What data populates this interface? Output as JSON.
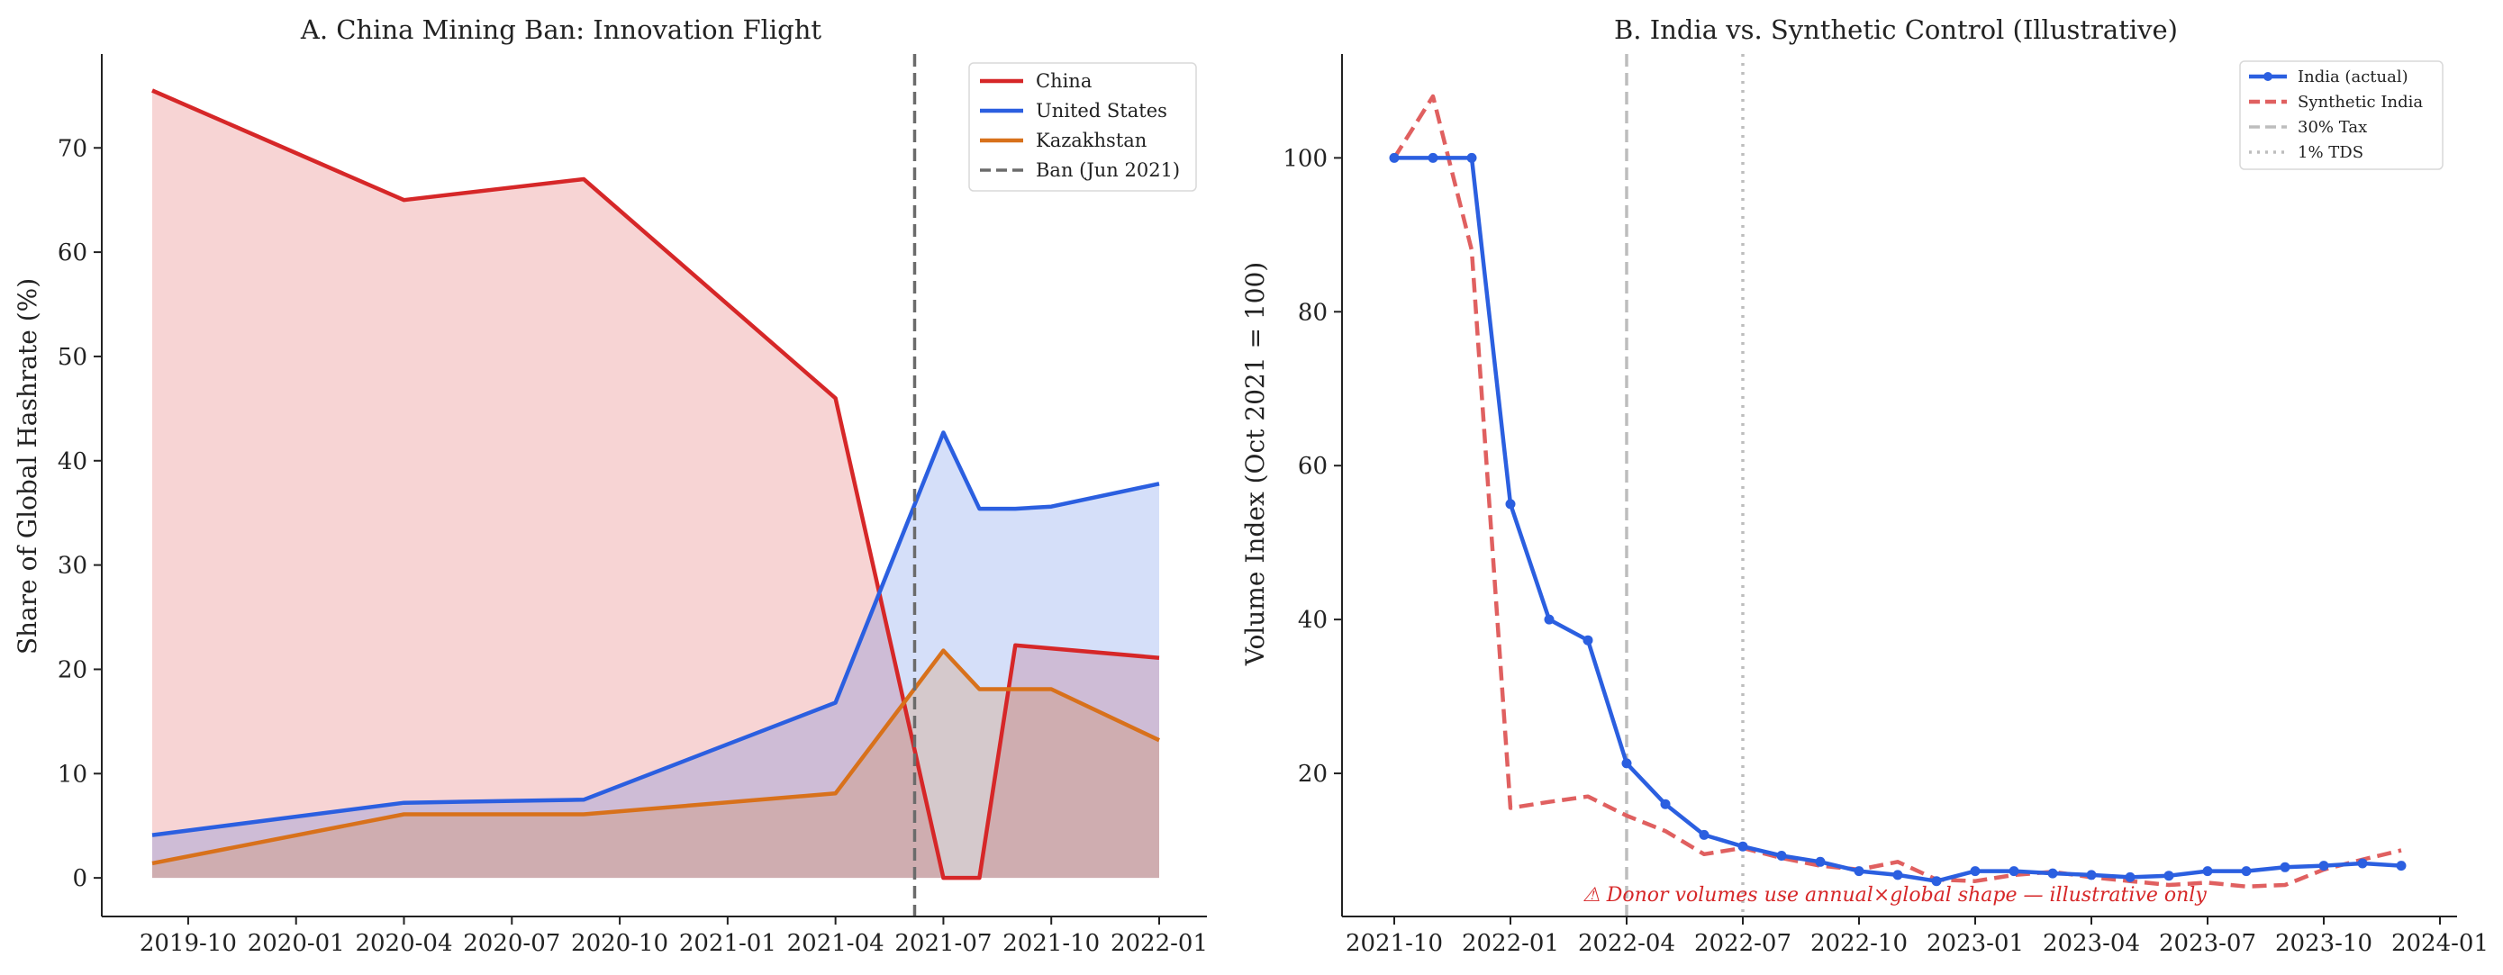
{
  "chart_data": [
    {
      "type": "area",
      "title": "A. China Mining Ban: Innovation Flight",
      "xlabel": "",
      "ylabel": "Share of Global Hashrate (%)",
      "x_tick_labels": [
        "2019-10",
        "2020-01",
        "2020-04",
        "2020-07",
        "2020-10",
        "2021-01",
        "2021-04",
        "2021-07",
        "2021-10",
        "2022-01"
      ],
      "y_ticks": [
        0,
        10,
        20,
        30,
        40,
        50,
        60,
        70
      ],
      "ylim": [
        -3.7,
        79
      ],
      "x": [
        "2019-09",
        "2020-04",
        "2020-09",
        "2021-04",
        "2021-07",
        "2021-08",
        "2021-09",
        "2021-10",
        "2022-01"
      ],
      "series": [
        {
          "name": "China",
          "color": "#d62728",
          "values": [
            75.5,
            65.0,
            67.0,
            46.0,
            0.0,
            0.0,
            22.3,
            22.0,
            21.1
          ]
        },
        {
          "name": "United States",
          "color": "#2b5fe0",
          "values": [
            4.1,
            7.2,
            7.5,
            16.8,
            42.7,
            35.4,
            35.4,
            35.6,
            37.8
          ]
        },
        {
          "name": "Kazakhstan",
          "color": "#d8711b",
          "values": [
            1.4,
            6.1,
            6.1,
            8.1,
            21.8,
            18.1,
            18.1,
            18.1,
            13.2
          ]
        }
      ],
      "vline": {
        "label": "Ban (Jun 2021)",
        "x": "2021-06"
      },
      "legend_position": "top-right"
    },
    {
      "type": "line",
      "title": "B. India vs. Synthetic Control (Illustrative)",
      "xlabel": "",
      "ylabel": "Volume Index (Oct 2021 = 100)",
      "x_tick_labels": [
        "2021-10",
        "2022-01",
        "2022-04",
        "2022-07",
        "2022-10",
        "2023-01",
        "2023-04",
        "2023-07",
        "2023-10",
        "2024-01"
      ],
      "y_ticks": [
        20,
        40,
        60,
        80,
        100
      ],
      "ylim": [
        1.4,
        113.5
      ],
      "x": [
        "2021-10",
        "2021-11",
        "2021-12",
        "2022-01",
        "2022-02",
        "2022-03",
        "2022-04",
        "2022-05",
        "2022-06",
        "2022-07",
        "2022-08",
        "2022-09",
        "2022-10",
        "2022-11",
        "2022-12",
        "2023-01",
        "2023-02",
        "2023-03",
        "2023-04",
        "2023-05",
        "2023-06",
        "2023-07",
        "2023-08",
        "2023-09",
        "2023-10",
        "2023-11",
        "2023-12"
      ],
      "series": [
        {
          "name": "India (actual)",
          "color": "#2b5fe0",
          "values": [
            100,
            100,
            100,
            55,
            40,
            37.3,
            21.3,
            16,
            12,
            10.5,
            9.3,
            8.5,
            7.3,
            6.8,
            6,
            7.3,
            7.3,
            7,
            6.8,
            6.5,
            6.7,
            7.3,
            7.3,
            7.8,
            8,
            8.3,
            8
          ]
        },
        {
          "name": "Synthetic India",
          "color": "#e06060",
          "values": [
            100,
            108,
            88,
            15.5,
            16.3,
            17,
            14.5,
            12.5,
            9.5,
            10.3,
            9,
            8,
            7.5,
            8.5,
            6.2,
            6,
            6.8,
            7.2,
            6.5,
            6,
            5.5,
            5.8,
            5.3,
            5.5,
            7.5,
            8.8,
            10
          ]
        }
      ],
      "vlines": [
        {
          "label": "30% Tax",
          "x": "2022-04",
          "style": "dashed"
        },
        {
          "label": "1% TDS",
          "x": "2022-07",
          "style": "dotted"
        }
      ],
      "annotation": "⚠ Donor volumes use annual×global shape — illustrative only",
      "legend_position": "top-right"
    }
  ]
}
